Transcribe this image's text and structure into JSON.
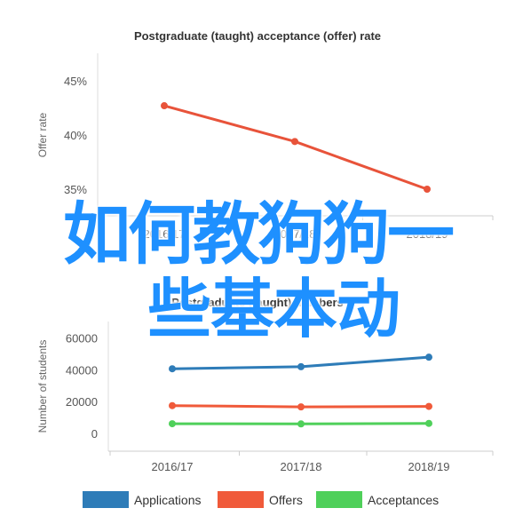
{
  "chart_data": [
    {
      "type": "line",
      "title": "Postgraduate (taught) acceptance (offer) rate",
      "ylabel": "Offer rate",
      "categories": [
        "2016/17",
        "2017/18",
        "2018/19"
      ],
      "y_ticks": [
        "35%",
        "40%",
        "45%"
      ],
      "ylim": [
        34,
        47
      ],
      "series": [
        {
          "values": [
            42.7,
            39.4,
            35.0
          ],
          "color": "#e8533a"
        }
      ],
      "grid": false
    },
    {
      "type": "line",
      "title": "Postgraduate (taught) numbers",
      "ylabel": "Number of students",
      "categories": [
        "2016/17",
        "2017/18",
        "2018/19"
      ],
      "y_ticks": [
        "0",
        "20000",
        "40000",
        "60000"
      ],
      "ylim": [
        -3000,
        65000
      ],
      "series": [
        {
          "name": "Applications",
          "values": [
            40700,
            42000,
            48000
          ],
          "color": "#2e7cb8"
        },
        {
          "name": "Offers",
          "values": [
            17500,
            16700,
            17000
          ],
          "color": "#f05a3a"
        },
        {
          "name": "Acceptances",
          "values": [
            6100,
            6000,
            6300
          ],
          "color": "#4fd05a"
        }
      ],
      "legend": "bottom",
      "grid": false
    }
  ],
  "overlay": {
    "line1": "如何教狗狗一",
    "line2": "些基本动"
  }
}
